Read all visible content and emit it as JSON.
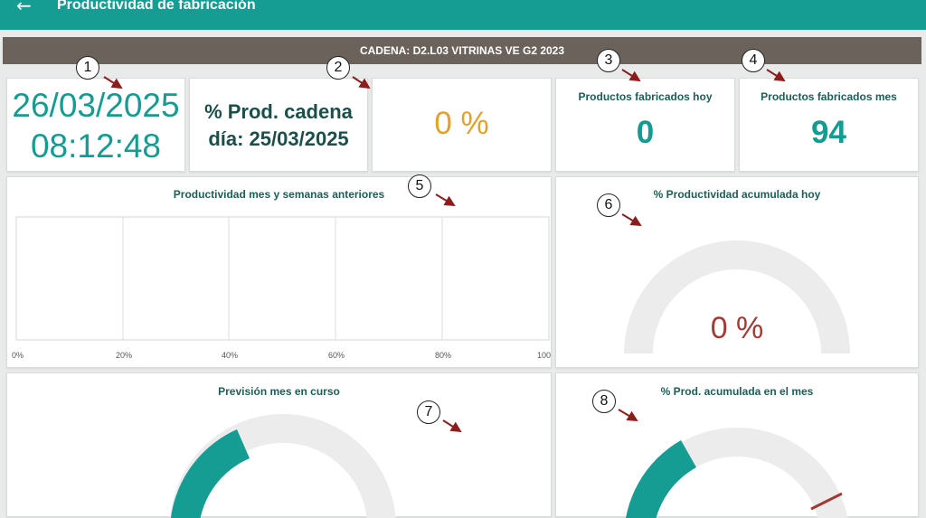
{
  "header": {
    "back_icon": "arrow-left-icon",
    "title": "Productividad de fabricación"
  },
  "chain": {
    "label": "CADENA: D2.L03 VITRINAS VE G2 2023"
  },
  "datetime": {
    "date": "26/03/2025",
    "time": "08:12:48"
  },
  "prod_chain": {
    "line1": "% Prod. cadena",
    "line2": "día: 25/03/2025",
    "value": "0 %"
  },
  "today": {
    "title": "Productos fabricados hoy",
    "value": "0"
  },
  "month": {
    "title": "Productos fabricados mes",
    "value": "94"
  },
  "weekly_chart": {
    "title": "Productividad mes y semanas anteriores",
    "ticks": [
      "0%",
      "20%",
      "40%",
      "60%",
      "80%",
      "100"
    ]
  },
  "gauge_today": {
    "title": "% Productividad acumulada hoy",
    "value": "0 %",
    "fraction": 0
  },
  "forecast": {
    "title": "Previsión mes en curso"
  },
  "gauge_month": {
    "title": "% Prod. acumulada en el mes"
  },
  "callouts": [
    "1",
    "2",
    "3",
    "4",
    "5",
    "6",
    "7",
    "8"
  ],
  "colors": {
    "teal": "#159c93",
    "dark_bar": "#6b625c",
    "orange": "#e3a12c",
    "red": "#a13a35",
    "gauge_bg": "#ececec"
  }
}
